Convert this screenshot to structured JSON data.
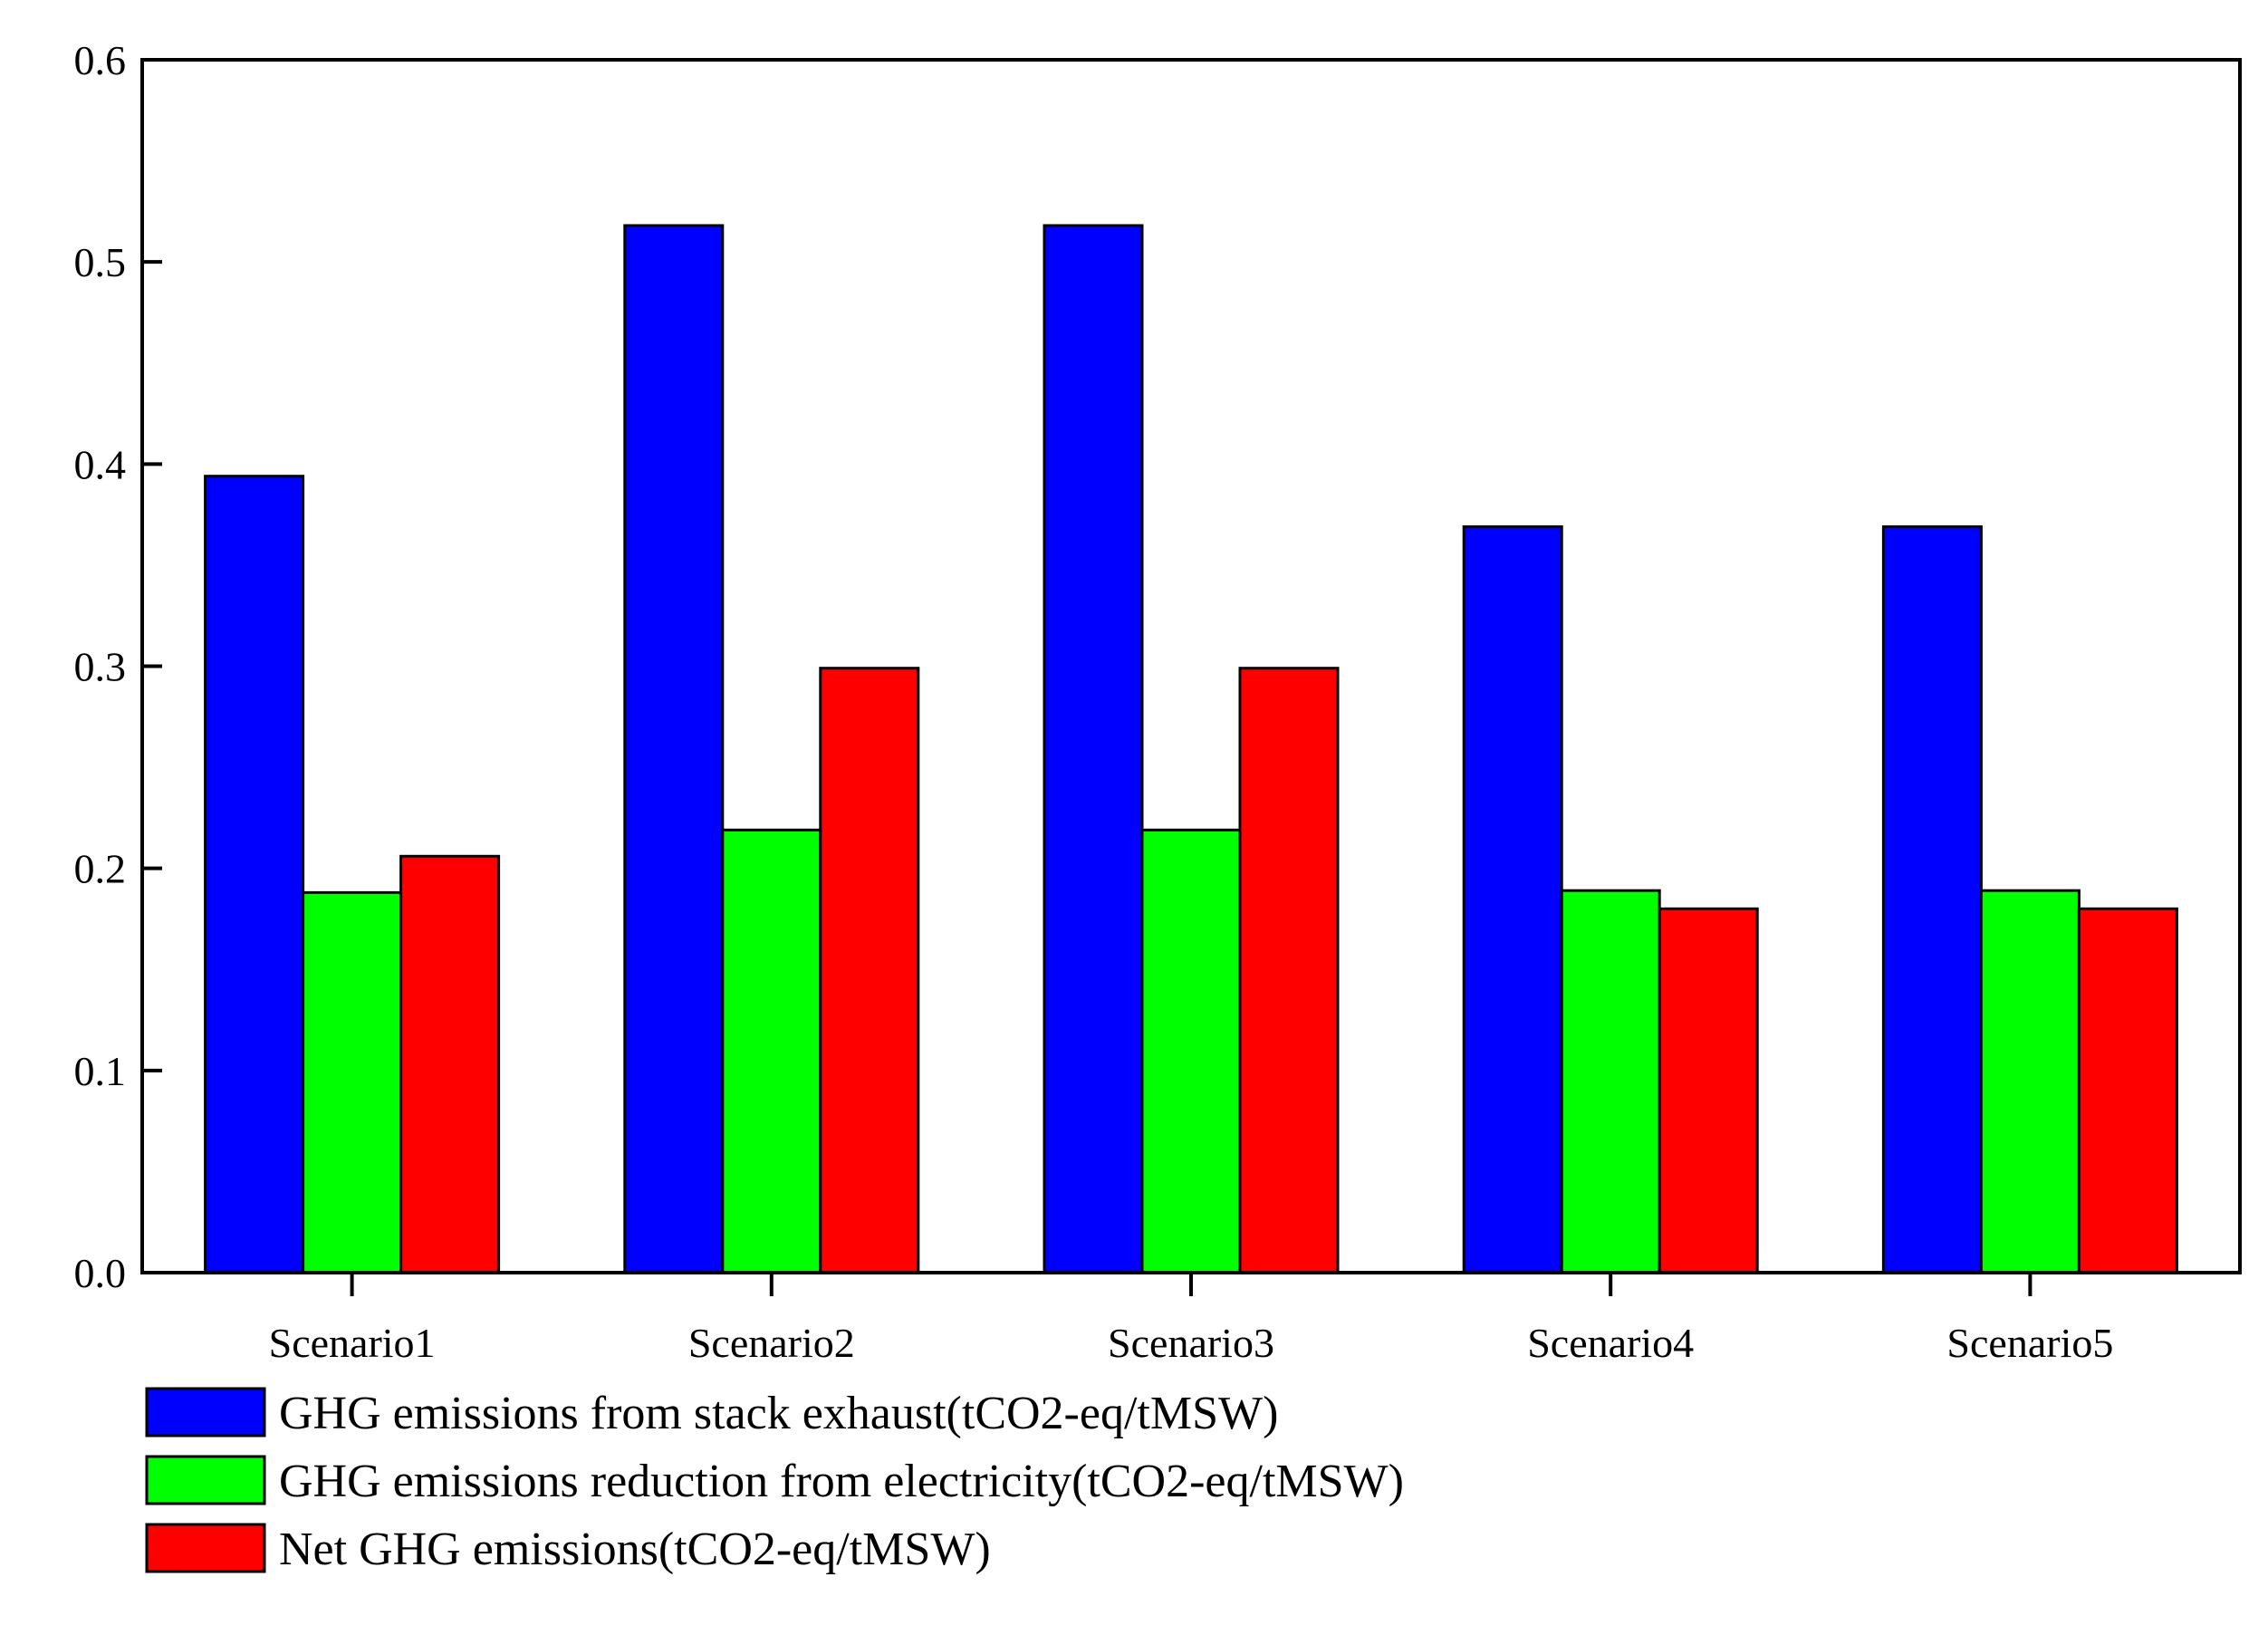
{
  "chart_data": {
    "type": "bar",
    "title": "",
    "xlabel": "",
    "ylabel": "",
    "ylim": [
      0,
      0.6
    ],
    "yticks": [
      "0.0",
      "0.1",
      "0.2",
      "0.3",
      "0.4",
      "0.5",
      "0.6"
    ],
    "categories": [
      "Scenario1",
      "Scenario2",
      "Scenario3",
      "Scenario4",
      "Scenario5"
    ],
    "series": [
      {
        "name": "GHG emissions from stack exhaust(tCO2-eq/tMSW)",
        "color": "#0000ff",
        "values": [
          0.394,
          0.518,
          0.518,
          0.369,
          0.369
        ]
      },
      {
        "name": "GHG emissions reduction from electricity(tCO2-eq/tMSW)",
        "color": "#00ff00",
        "values": [
          0.188,
          0.219,
          0.219,
          0.189,
          0.189
        ]
      },
      {
        "name": "Net GHG emissions(tCO2-eq/tMSW)",
        "color": "#ff0000",
        "values": [
          0.206,
          0.299,
          0.299,
          0.18,
          0.18
        ]
      }
    ],
    "grid": false,
    "legend_position": "bottom-left"
  }
}
